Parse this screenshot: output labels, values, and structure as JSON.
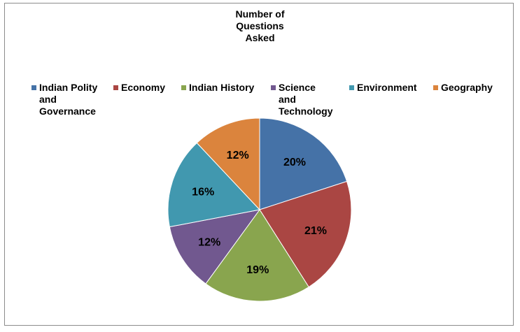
{
  "chart_data": {
    "type": "pie",
    "title": [
      "Number of",
      "Questions",
      "Asked"
    ],
    "legend_position": "top",
    "slices": [
      {
        "label": [
          "Indian Polity",
          "and",
          "Governance"
        ],
        "value": 20,
        "color": "#4572a7"
      },
      {
        "label": [
          "Economy"
        ],
        "value": 21,
        "color": "#aa4643"
      },
      {
        "label": [
          "Indian History"
        ],
        "value": 19,
        "color": "#89a54e"
      },
      {
        "label": [
          "Science",
          "and",
          "Technology"
        ],
        "value": 12,
        "color": "#71588f"
      },
      {
        "label": [
          "Environment"
        ],
        "value": 16,
        "color": "#4198af"
      },
      {
        "label": [
          "Geography"
        ],
        "value": 12,
        "color": "#db843d"
      }
    ]
  }
}
